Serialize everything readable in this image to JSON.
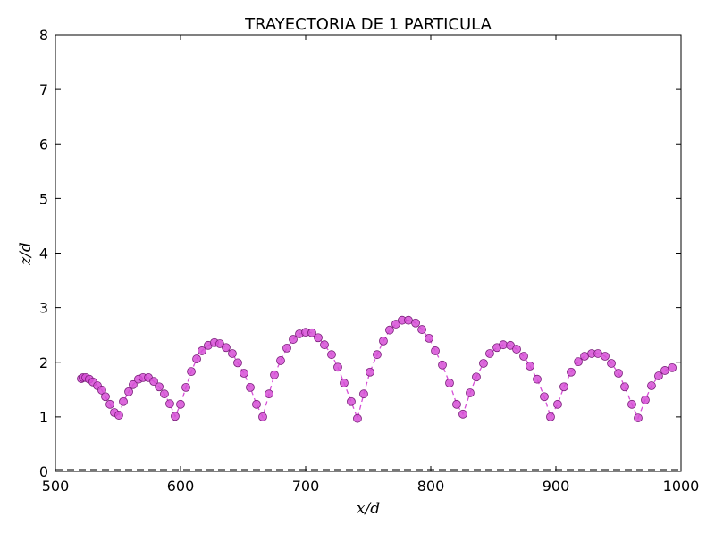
{
  "chart_data": {
    "type": "line",
    "title": "TRAYECTORIA DE 1 PARTICULA",
    "x_label": "x/d",
    "y_label": "z/d",
    "xlim": [
      500,
      1000
    ],
    "xticks": [
      500,
      600,
      700,
      800,
      900,
      1000
    ],
    "ylim": [
      0,
      8
    ],
    "yticks": [
      0,
      1,
      2,
      3,
      4,
      5,
      6,
      7,
      8
    ],
    "series": [
      {
        "color": "#d64fd6",
        "x": [
          520.7,
          522.1,
          524.3,
          527.1,
          530.0,
          533.6,
          537.1,
          540.0,
          543.6,
          547.1,
          550.7,
          554.3,
          558.6,
          562.1,
          566.4,
          570.0,
          574.3,
          578.6,
          582.9,
          587.1,
          591.4,
          595.7,
          600.0,
          604.3,
          608.6,
          612.9,
          617.1,
          622.1,
          627.1,
          631.4,
          636.4,
          641.4,
          645.7,
          650.7,
          655.7,
          660.7,
          665.7,
          670.7,
          675.0,
          680.0,
          685.0,
          690.0,
          695.0,
          700.0,
          705.0,
          710.0,
          715.0,
          720.7,
          725.7,
          730.7,
          736.4,
          741.4,
          746.4,
          751.4,
          757.1,
          762.1,
          767.1,
          772.1,
          777.1,
          782.1,
          787.9,
          792.9,
          798.6,
          803.6,
          809.3,
          815.0,
          820.7,
          825.7,
          831.4,
          836.4,
          842.1,
          847.1,
          852.9,
          857.9,
          863.6,
          868.6,
          874.3,
          879.3,
          885.0,
          890.7,
          895.7,
          901.4,
          906.4,
          912.1,
          917.9,
          922.9,
          928.6,
          933.6,
          939.3,
          944.3,
          950.0,
          955.0,
          960.7,
          965.7,
          971.4,
          976.4,
          982.1,
          987.1,
          992.9
        ],
        "values": [
          1.7,
          1.72,
          1.72,
          1.69,
          1.64,
          1.57,
          1.49,
          1.37,
          1.23,
          1.08,
          1.03,
          1.28,
          1.46,
          1.59,
          1.69,
          1.72,
          1.72,
          1.65,
          1.55,
          1.42,
          1.24,
          1.01,
          1.23,
          1.54,
          1.83,
          2.06,
          2.21,
          2.31,
          2.36,
          2.34,
          2.27,
          2.16,
          1.99,
          1.8,
          1.54,
          1.23,
          1.0,
          1.42,
          1.77,
          2.03,
          2.26,
          2.42,
          2.52,
          2.55,
          2.54,
          2.45,
          2.32,
          2.14,
          1.91,
          1.62,
          1.28,
          0.97,
          1.42,
          1.82,
          2.14,
          2.39,
          2.59,
          2.7,
          2.77,
          2.77,
          2.72,
          2.6,
          2.44,
          2.21,
          1.95,
          1.62,
          1.23,
          1.05,
          1.44,
          1.73,
          1.98,
          2.16,
          2.27,
          2.32,
          2.31,
          2.24,
          2.11,
          1.93,
          1.69,
          1.37,
          1.0,
          1.23,
          1.55,
          1.82,
          2.01,
          2.11,
          2.16,
          2.16,
          2.11,
          1.98,
          1.8,
          1.55,
          1.23,
          0.98,
          1.31,
          1.57,
          1.75,
          1.85,
          1.9
        ]
      }
    ]
  }
}
